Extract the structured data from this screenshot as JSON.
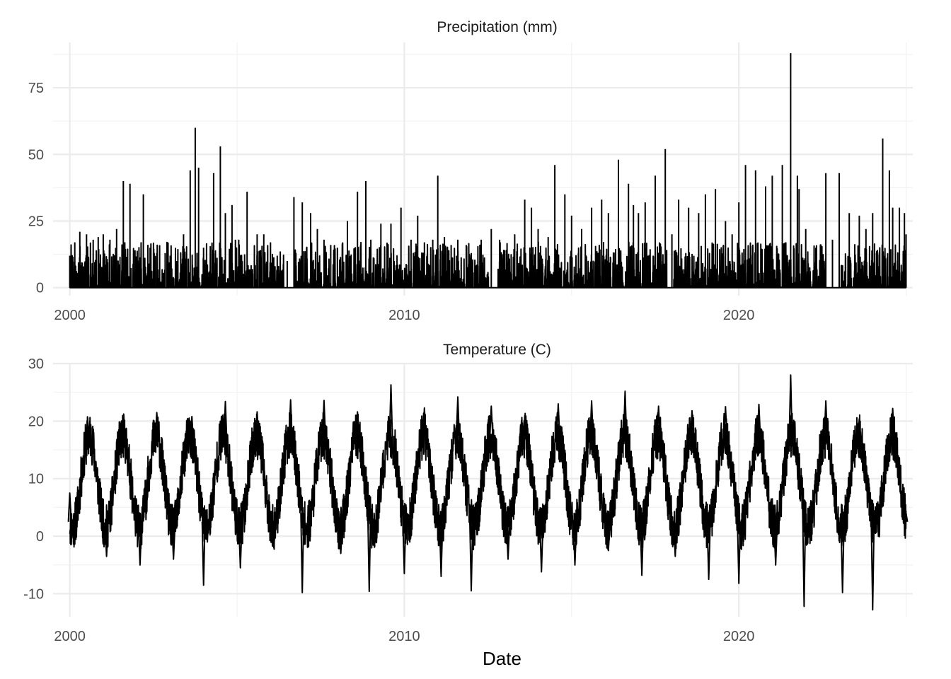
{
  "chart_data": [
    {
      "type": "line",
      "title": "Precipitation (mm)",
      "xlabel": "",
      "ylabel": "",
      "xlim": [
        1999.5,
        2025.2
      ],
      "ylim": [
        -3,
        92
      ],
      "x_ticks": [
        2000,
        2010,
        2020
      ],
      "x_tick_labels": [
        "2000",
        "2010",
        "2020"
      ],
      "x_minor_ticks": [
        2005,
        2015,
        2025
      ],
      "y_ticks": [
        0,
        25,
        50,
        75
      ],
      "y_tick_labels": [
        "0",
        "25",
        "50",
        "75"
      ],
      "y_minor_ticks": [
        12.5,
        37.5,
        62.5,
        87.5
      ],
      "grid": true,
      "legend": "none",
      "color": "#000000",
      "series": [
        {
          "x": [
            2000.0,
            2000.15,
            2000.3,
            2000.5,
            2000.7,
            2000.85,
            2001.0,
            2001.2,
            2001.4,
            2001.6,
            2001.8,
            2001.95,
            2002.05,
            2002.2,
            2002.4,
            2002.6,
            2002.85,
            2003.0,
            2003.2,
            2003.4,
            2003.6,
            2003.75,
            2003.85,
            2004.0,
            2004.3,
            2004.5,
            2004.65,
            2004.85,
            2004.95,
            2005.05,
            2005.3,
            2005.6,
            2005.8,
            2006.0,
            2006.2,
            2006.5,
            2006.7,
            2006.95,
            2007.2,
            2007.4,
            2007.6,
            2007.8,
            2008.0,
            2008.3,
            2008.6,
            2008.85,
            2009.0,
            2009.3,
            2009.6,
            2009.9,
            2010.2,
            2010.4,
            2010.6,
            2010.85,
            2011.0,
            2011.2,
            2011.4,
            2011.6,
            2011.85,
            2012.0,
            2012.3,
            2012.6,
            2012.85,
            2013.0,
            2013.3,
            2013.6,
            2013.8,
            2014.0,
            2014.3,
            2014.5,
            2014.8,
            2015.0,
            2015.3,
            2015.6,
            2015.9,
            2016.1,
            2016.4,
            2016.7,
            2016.85,
            2017.0,
            2017.2,
            2017.5,
            2017.8,
            2018.0,
            2018.2,
            2018.5,
            2018.8,
            2019.0,
            2019.3,
            2019.6,
            2019.8,
            2020.0,
            2020.2,
            2020.5,
            2020.8,
            2021.0,
            2021.3,
            2021.55,
            2021.75,
            2021.8,
            2022.0,
            2022.3,
            2022.6,
            2022.8,
            2023.0,
            2023.3,
            2023.6,
            2023.8,
            2024.0,
            2024.3,
            2024.5,
            2024.6,
            2024.8,
            2024.95,
            2025.0
          ],
          "y": [
            12,
            17,
            21,
            20,
            18,
            19,
            20,
            18,
            22,
            40,
            39,
            14,
            10,
            35,
            15,
            13,
            13,
            12,
            10,
            20,
            44,
            60,
            45,
            15,
            43,
            53,
            28,
            31,
            18,
            18,
            36,
            20,
            20,
            17,
            12,
            10,
            34,
            32,
            28,
            22,
            18,
            16,
            15,
            25,
            36,
            40,
            18,
            24,
            24,
            30,
            18,
            27,
            17,
            18,
            42,
            19,
            16,
            18,
            16,
            13,
            18,
            22,
            18,
            14,
            20,
            33,
            30,
            22,
            19,
            46,
            35,
            27,
            22,
            30,
            33,
            28,
            48,
            39,
            31,
            28,
            32,
            42,
            52,
            20,
            33,
            30,
            28,
            35,
            37,
            25,
            20,
            32,
            46,
            44,
            38,
            42,
            46,
            88,
            42,
            37,
            22,
            15,
            43,
            18,
            43,
            28,
            27,
            22,
            28,
            56,
            44,
            30,
            30,
            28,
            20
          ]
        }
      ]
    },
    {
      "type": "line",
      "title": "Temperature (C)",
      "xlabel": "Date",
      "ylabel": "",
      "xlim": [
        1999.5,
        2025.2
      ],
      "ylim": [
        -14,
        30
      ],
      "x_ticks": [
        2000,
        2010,
        2020
      ],
      "x_tick_labels": [
        "2000",
        "2010",
        "2020"
      ],
      "x_minor_ticks": [
        2005,
        2015,
        2025
      ],
      "y_ticks": [
        -10,
        0,
        10,
        20,
        30
      ],
      "y_tick_labels": [
        "-10",
        "0",
        "10",
        "20",
        "30"
      ],
      "y_minor_ticks": [
        -5,
        5,
        15,
        25
      ],
      "grid": true,
      "legend": "none",
      "color": "#000000",
      "seasonal_summary": {
        "annual_mean": 9.5,
        "seasonal_amplitude": 8,
        "daily_noise_range": 4,
        "peak_fraction_of_year": 0.58
      },
      "series": [
        {
          "x": [
            2000.0,
            2000.6,
            2001.1,
            2001.6,
            2002.1,
            2002.6,
            2003.1,
            2003.65,
            2004.0,
            2004.65,
            2005.1,
            2005.6,
            2006.1,
            2006.6,
            2006.95,
            2007.6,
            2008.1,
            2008.6,
            2008.95,
            2009.6,
            2010.0,
            2010.6,
            2011.1,
            2011.6,
            2012.0,
            2012.6,
            2013.1,
            2013.6,
            2014.1,
            2014.6,
            2015.1,
            2015.6,
            2016.1,
            2016.6,
            2017.1,
            2017.6,
            2018.1,
            2018.6,
            2019.1,
            2019.6,
            2020.0,
            2020.6,
            2021.1,
            2021.55,
            2021.95,
            2022.6,
            2023.1,
            2023.6,
            2024.0,
            2024.6,
            2025.0
          ],
          "y": [
            7.5,
            20,
            -3.5,
            19.5,
            -5,
            21.5,
            -4,
            20.8,
            -8.5,
            23.4,
            -5.5,
            21.6,
            -2,
            23.7,
            -9.8,
            23.6,
            -3,
            21.6,
            -9.6,
            26.3,
            -6.5,
            22.3,
            -7,
            24.2,
            -9.5,
            22.6,
            -4,
            20.8,
            -6.2,
            23,
            -5,
            23.5,
            -2.5,
            25.2,
            -6.8,
            22.6,
            -3.5,
            21.8,
            -7.5,
            22.5,
            -8.2,
            22.9,
            -5,
            28,
            -12.2,
            23.5,
            -9.8,
            20.4,
            -12.8,
            22.2,
            4
          ]
        }
      ]
    }
  ]
}
